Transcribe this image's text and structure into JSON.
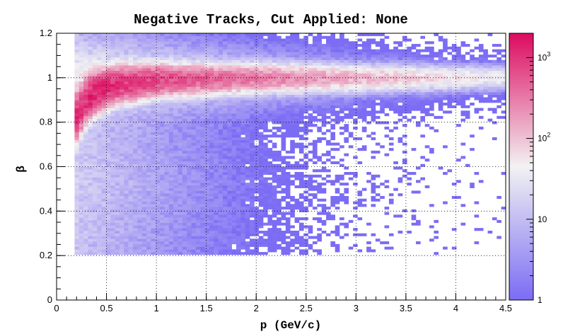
{
  "chart_data": {
    "type": "heatmap",
    "title": "Negative Tracks, Cut Applied: None",
    "xlabel": "p (GeV/c)",
    "ylabel": "β",
    "xlim": [
      0,
      4.5
    ],
    "ylim": [
      0,
      1.2
    ],
    "x_ticks": [
      "0",
      "0.5",
      "1",
      "1.5",
      "2",
      "2.5",
      "3",
      "3.5",
      "4",
      "4.5"
    ],
    "y_ticks": [
      "0",
      "0.2",
      "0.4",
      "0.6",
      "0.8",
      "1",
      "1.2"
    ],
    "grid": true,
    "colorbar": {
      "scale": "log",
      "range": [
        1,
        2000
      ],
      "ticks": [
        {
          "value": 1,
          "base": "1",
          "exp": ""
        },
        {
          "value": 10,
          "base": "10",
          "exp": ""
        },
        {
          "value": 100,
          "base": "10",
          "exp": "2"
        },
        {
          "value": 1000,
          "base": "10",
          "exp": "3"
        }
      ],
      "colors": [
        "#7b6cf4",
        "#f2f2f2",
        "#dc0b60"
      ]
    },
    "binning": {
      "nx": 100,
      "ny": 100
    },
    "features": {
      "band_main": {
        "description": "beta approx 1 electron band",
        "beta_at_p": [
          [
            0.2,
            0.83
          ],
          [
            0.3,
            0.9
          ],
          [
            0.4,
            0.94
          ],
          [
            0.6,
            0.97
          ],
          [
            1.0,
            0.99
          ],
          [
            2.0,
            0.998
          ],
          [
            4.5,
            1.0
          ]
        ],
        "peak_counts": 2000
      },
      "p_min": 0.2,
      "beta_min": 0.2
    }
  }
}
